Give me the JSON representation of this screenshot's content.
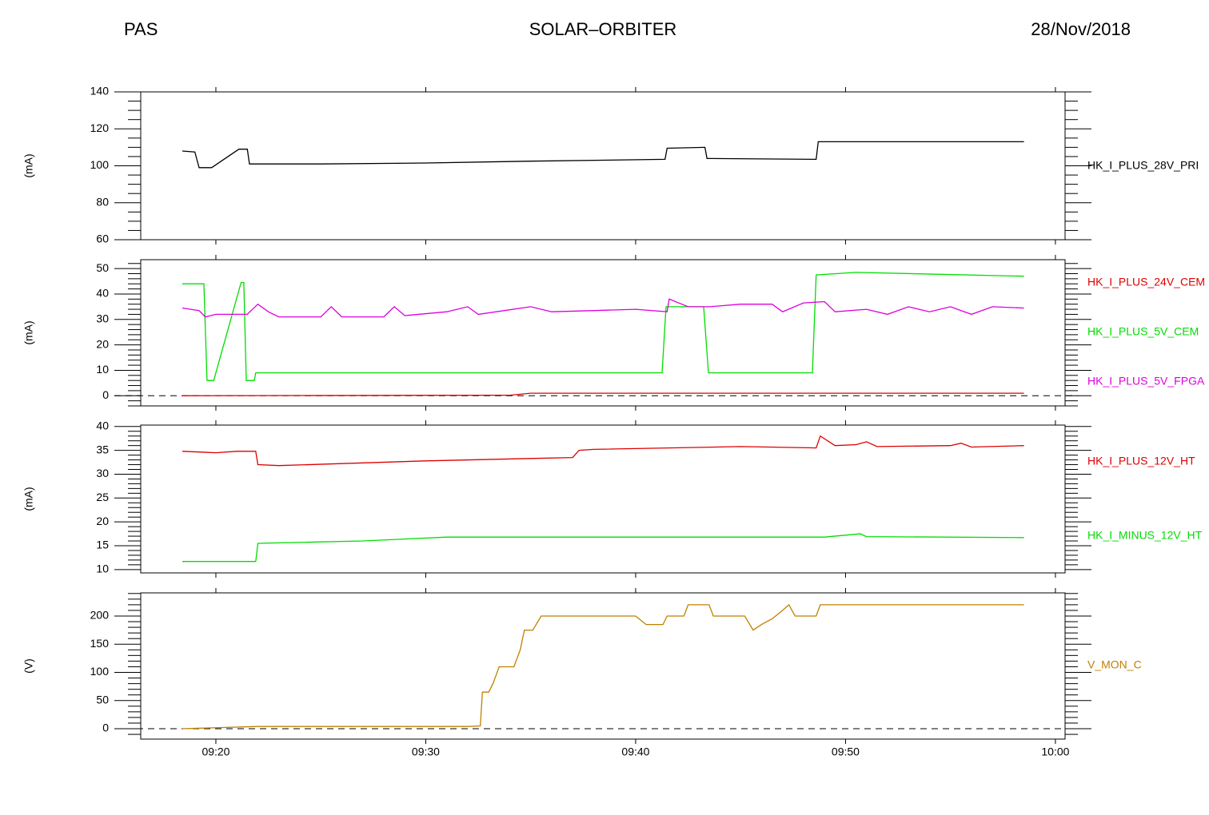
{
  "header": {
    "left": "PAS",
    "center": "SOLAR–ORBITER",
    "right": "28/Nov/2018"
  },
  "chart_data": [
    {
      "type": "line",
      "ylabel": "(mA)",
      "xlim": [
        556.42,
        600.46
      ],
      "xticks": [
        560,
        570,
        580,
        590,
        600
      ],
      "ylim": [
        60,
        140
      ],
      "yticks": [
        60,
        80,
        100,
        120,
        140
      ],
      "yminor": 4,
      "zero_line": false,
      "series": [
        {
          "name": "HK_I_PLUS_28V_PRI",
          "color": "#000000",
          "x": [
            558.4,
            559.0,
            559.2,
            559.8,
            561.1,
            561.5,
            561.6,
            565,
            570,
            575,
            581.4,
            581.5,
            583.3,
            583.4,
            588.6,
            588.7,
            593,
            598.5
          ],
          "values": [
            108,
            107.5,
            99,
            99,
            109,
            109,
            101,
            101,
            101.5,
            102.5,
            103.5,
            109.5,
            110,
            104,
            103.5,
            113,
            113,
            113
          ]
        }
      ]
    },
    {
      "type": "line",
      "ylabel": "(mA)",
      "xlim": [
        556.42,
        600.46
      ],
      "xticks": [
        560,
        570,
        580,
        590,
        600
      ],
      "ylim": [
        -4,
        53.5
      ],
      "yticks": [
        0,
        10,
        20,
        30,
        40,
        50
      ],
      "yminor": 5,
      "zero_line": true,
      "series": [
        {
          "name": "HK_I_PLUS_24V_CEM",
          "color": "#dd0000",
          "x": [
            558.4,
            574,
            575,
            598.5
          ],
          "values": [
            0,
            0.2,
            1,
            1
          ]
        },
        {
          "name": "HK_I_PLUS_5V_CEM",
          "color": "#00dd00",
          "x": [
            558.4,
            559.43,
            559.58,
            559.9,
            561.2,
            561.33,
            561.45,
            561.83,
            561.9,
            581.26,
            581.45,
            583.24,
            583.47,
            588.42,
            588.6,
            590.5,
            598.5
          ],
          "values": [
            44,
            44,
            6,
            6,
            44.5,
            44.5,
            6,
            6,
            9,
            9,
            35,
            35,
            9,
            9,
            47.5,
            48.5,
            47
          ]
        },
        {
          "name": "HK_I_PLUS_5V_FPGA",
          "color": "#dd00dd",
          "x": [
            558.4,
            559.2,
            559.5,
            560,
            561.5,
            562,
            562.5,
            563,
            565,
            565.5,
            566,
            568,
            568.5,
            569,
            571,
            572,
            572.5,
            575,
            576,
            578,
            580,
            581.5,
            581.6,
            582.5,
            583.5,
            585,
            586.5,
            587,
            588,
            589,
            589.5,
            591,
            592,
            593,
            594,
            595,
            596,
            597,
            598.5
          ],
          "values": [
            34.5,
            33.5,
            31,
            32,
            32,
            36,
            33,
            31,
            31,
            35,
            31,
            31,
            35,
            31.5,
            33,
            35,
            32,
            35,
            33,
            33.5,
            34,
            33,
            38,
            35,
            35,
            36,
            36,
            33,
            36.5,
            37,
            33,
            34,
            32,
            35,
            33,
            35,
            32,
            35,
            34.5
          ]
        }
      ]
    },
    {
      "type": "line",
      "ylabel": "(mA)",
      "xlim": [
        556.42,
        600.46
      ],
      "xticks": [
        560,
        570,
        580,
        590,
        600
      ],
      "ylim": [
        9.3,
        40.3
      ],
      "yticks": [
        10,
        15,
        20,
        25,
        30,
        35,
        40
      ],
      "yminor": 5,
      "zero_line": false,
      "series": [
        {
          "name": "HK_I_PLUS_12V_HT",
          "color": "#dd0000",
          "x": [
            558.4,
            560,
            561,
            561.9,
            562,
            563,
            570,
            575,
            577,
            577.3,
            578,
            585,
            588.6,
            588.8,
            589.5,
            590.5,
            591,
            591.5,
            595,
            595.5,
            596,
            598.5
          ],
          "values": [
            34.8,
            34.5,
            34.8,
            34.8,
            32,
            31.8,
            32.8,
            33.3,
            33.5,
            35,
            35.2,
            35.8,
            35.5,
            38,
            36,
            36.2,
            36.8,
            35.8,
            36,
            36.5,
            35.7,
            36
          ]
        },
        {
          "name": "HK_I_MINUS_12V_HT",
          "color": "#00dd00",
          "x": [
            558.4,
            561.9,
            562,
            567,
            571,
            585,
            589,
            590.7,
            591,
            598.5
          ],
          "values": [
            11.7,
            11.7,
            15.5,
            16,
            16.8,
            16.8,
            16.8,
            17.5,
            16.9,
            16.7
          ]
        }
      ]
    },
    {
      "type": "line",
      "ylabel": "(V)",
      "xlim": [
        556.42,
        600.46
      ],
      "xticks": [
        {
          "value": 560,
          "label": "09:20"
        },
        {
          "value": 570,
          "label": "09:30"
        },
        {
          "value": 580,
          "label": "09:40"
        },
        {
          "value": 590,
          "label": "09:50"
        },
        {
          "value": 600,
          "label": "10:00"
        }
      ],
      "ylim": [
        -18.4,
        241.1
      ],
      "yticks": [
        0,
        50,
        100,
        150,
        200
      ],
      "yminor": 5,
      "zero_line": true,
      "series": [
        {
          "name": "V_MON_C",
          "color": "#c08000",
          "x": [
            558.4,
            562,
            572,
            572.6,
            572.7,
            573,
            573.2,
            573.5,
            574.2,
            574.5,
            574.7,
            575.1,
            575.5,
            580,
            580.5,
            581.3,
            581.5,
            582.3,
            582.5,
            583.5,
            583.7,
            585.2,
            585.6,
            586,
            586.5,
            587,
            587.3,
            587.6,
            588.6,
            588.8,
            598.5
          ],
          "values": [
            0,
            4,
            4,
            5,
            65,
            65,
            80,
            110,
            110,
            140,
            175,
            175,
            200,
            200,
            185,
            185,
            200,
            200,
            220,
            220,
            200,
            200,
            175,
            185,
            195,
            210,
            220,
            200,
            200,
            220,
            220
          ]
        }
      ]
    }
  ]
}
